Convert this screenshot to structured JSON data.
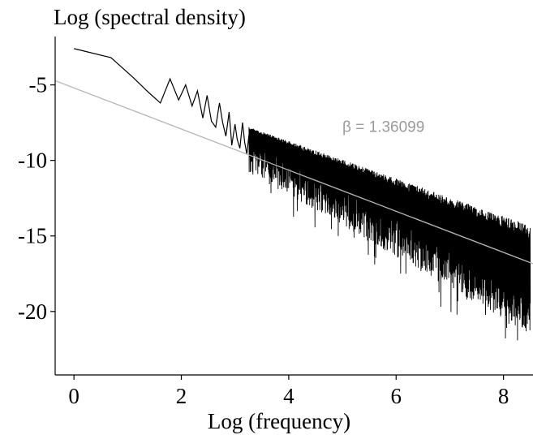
{
  "chart_data": {
    "type": "line",
    "title": "",
    "xlabel": "Log (frequency)",
    "ylabel": "Log (spectral density)",
    "xlim": [
      -0.35,
      8.55
    ],
    "ylim": [
      -24.2,
      -1.8
    ],
    "xticks": [
      0,
      2,
      4,
      6,
      8
    ],
    "xtick_labels": [
      "0",
      "2",
      "4",
      "6",
      "8"
    ],
    "yticks": [
      -5,
      -10,
      -15,
      -20
    ],
    "ytick_labels": [
      "-5",
      "-10",
      "-15",
      "-20"
    ],
    "grid": false,
    "legend": "none",
    "series": [
      {
        "style": "jagged spectral line",
        "color": "#000000",
        "x": [
          0,
          0.69,
          1.1,
          1.39,
          1.61,
          1.79,
          1.95,
          2.08,
          2.2,
          2.3,
          2.4,
          2.48,
          2.56,
          2.64,
          2.71,
          2.77,
          2.83,
          2.89,
          2.94,
          3.0,
          3.04,
          3.09,
          3.14,
          3.18,
          3.22,
          3.26
        ],
        "y": [
          -2.6,
          -3.2,
          -4.5,
          -5.5,
          -6.2,
          -4.6,
          -6.0,
          -5.0,
          -6.4,
          -5.4,
          -7.2,
          -5.7,
          -7.4,
          -7.8,
          -6.2,
          -7.5,
          -8.4,
          -6.8,
          -9.0,
          -7.6,
          -8.6,
          -9.2,
          -7.5,
          -8.8,
          -9.6,
          -8.3
        ]
      }
    ],
    "dense_band": {
      "description": "dense high-frequency periodogram region",
      "color": "#000000",
      "x_start": 3.26,
      "x_end": 8.5,
      "upper_start": -7.8,
      "upper_end": -14.3,
      "lower_start": -10.8,
      "lower_end": -21.5
    },
    "fit_line": {
      "color": "#b4b4b4",
      "slope": -1.36099,
      "intercept": -5.2,
      "x_range": [
        -0.35,
        8.55
      ]
    },
    "annotations": [
      {
        "text": "β = 1.36099",
        "x": 5.0,
        "y": -8.1,
        "color": "#9a9a9a"
      }
    ]
  }
}
